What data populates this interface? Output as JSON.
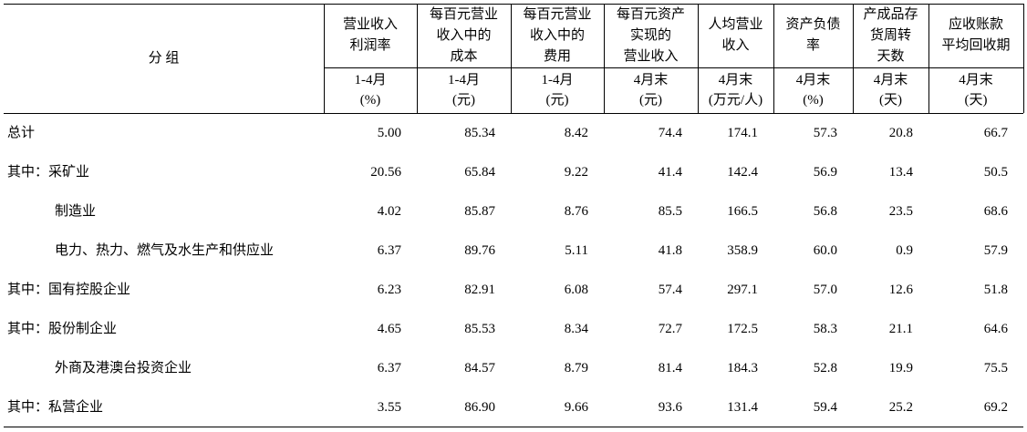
{
  "table": {
    "group_header": "分 组",
    "columns": [
      {
        "title": [
          "营业收入",
          "利润率"
        ],
        "period": "1-4月",
        "unit": "(%)"
      },
      {
        "title": [
          "每百元营业",
          "收入中的",
          "成本"
        ],
        "period": "1-4月",
        "unit": "(元)"
      },
      {
        "title": [
          "每百元营业",
          "收入中的",
          "费用"
        ],
        "period": "1-4月",
        "unit": "(元)"
      },
      {
        "title": [
          "每百元资产",
          "实现的",
          "营业收入"
        ],
        "period": "4月末",
        "unit": "(元)"
      },
      {
        "title": [
          "人均营业",
          "收入"
        ],
        "period": "4月末",
        "unit": "(万元/人)"
      },
      {
        "title": [
          "资产负债",
          "率"
        ],
        "period": "4月末",
        "unit": "(%)"
      },
      {
        "title": [
          "产成品存",
          "货周转",
          "天数"
        ],
        "period": "4月末",
        "unit": "(天)"
      },
      {
        "title": [
          "应收账款",
          "平均回收期"
        ],
        "period": "4月末",
        "unit": "(天)"
      }
    ],
    "rows": [
      [
        "总计",
        "5.00",
        "85.34",
        "8.42",
        "74.4",
        "174.1",
        "57.3",
        "20.8",
        "66.7"
      ],
      [
        "其中：采矿业",
        "20.56",
        "65.84",
        "9.22",
        "41.4",
        "142.4",
        "56.9",
        "13.4",
        "50.5"
      ],
      [
        "制造业",
        "4.02",
        "85.87",
        "8.76",
        "85.5",
        "166.5",
        "56.8",
        "23.5",
        "68.6"
      ],
      [
        "电力、热力、燃气及水生产和供应业",
        "6.37",
        "89.76",
        "5.11",
        "41.8",
        "358.9",
        "60.0",
        "0.9",
        "57.9"
      ],
      [
        "其中：国有控股企业",
        "6.23",
        "82.91",
        "6.08",
        "57.4",
        "297.1",
        "57.0",
        "12.6",
        "51.8"
      ],
      [
        "其中：股份制企业",
        "4.65",
        "85.53",
        "8.34",
        "72.7",
        "172.5",
        "58.3",
        "21.1",
        "64.6"
      ],
      [
        "外商及港澳台投资企业",
        "6.37",
        "84.57",
        "8.79",
        "81.4",
        "184.3",
        "52.8",
        "19.9",
        "75.5"
      ],
      [
        "其中：私营企业",
        "3.55",
        "86.90",
        "9.66",
        "93.6",
        "131.4",
        "59.4",
        "25.2",
        "69.2"
      ]
    ]
  }
}
